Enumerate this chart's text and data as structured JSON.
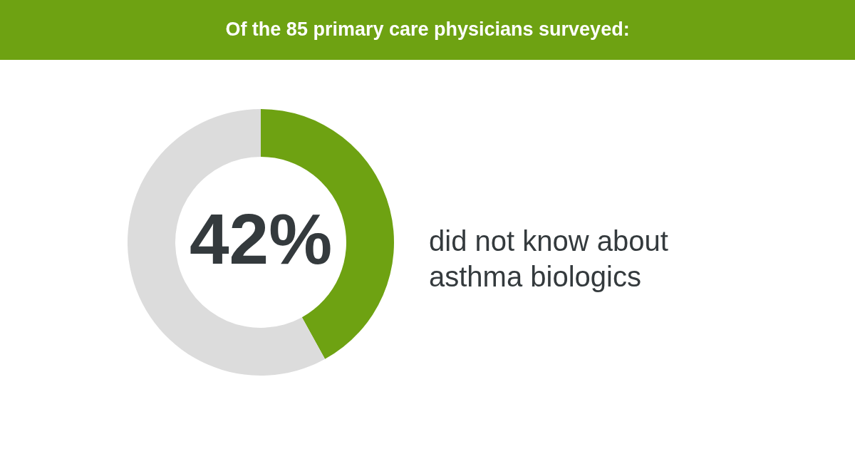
{
  "chart_data": {
    "type": "donut",
    "title": "Of the 85 primary care physicians surveyed:",
    "categories": [
      "did not know about asthma biologics",
      null
    ],
    "values": [
      42,
      58
    ],
    "colors": [
      "#6ea212",
      "#dcdcdc"
    ],
    "value_labels": [
      "42%",
      null
    ]
  }
}
